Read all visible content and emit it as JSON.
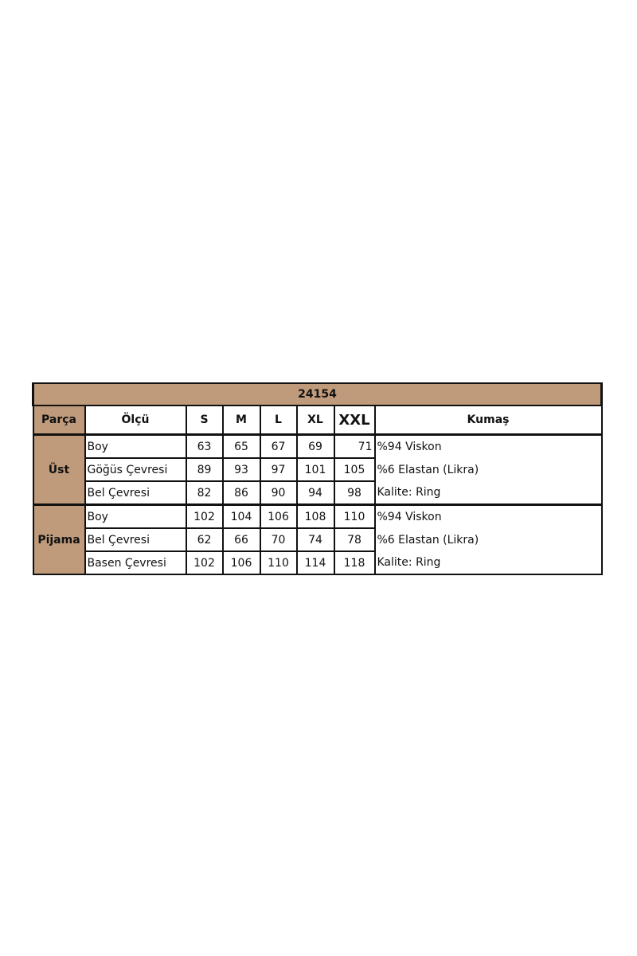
{
  "title": "24154",
  "headers": [
    "Parça",
    "Ölçü",
    "S",
    "M",
    "L",
    "XL",
    "XXL",
    "Kumaş"
  ],
  "groups": [
    {
      "name": "Üst",
      "rows": [
        {
          "label": "Boy",
          "values": [
            "63",
            "65",
            "67",
            "69",
            "71"
          ],
          "fabric": "%94 Viskon"
        },
        {
          "label": "Göğüs Çevresi",
          "values": [
            "89",
            "93",
            "97",
            "101",
            "105"
          ],
          "fabric": "%6 Elastan (Likra)"
        },
        {
          "label": "Bel Çevresi",
          "values": [
            "82",
            "86",
            "90",
            "94",
            "98"
          ],
          "fabric": "Kalite: Ring"
        }
      ]
    },
    {
      "name": "Pijama",
      "rows": [
        {
          "label": "Boy",
          "values": [
            "102",
            "104",
            "106",
            "108",
            "110"
          ],
          "fabric": "%94 Viskon"
        },
        {
          "label": "Bel Çevresi",
          "values": [
            "62",
            "66",
            "70",
            "74",
            "78"
          ],
          "fabric": "%6 Elastan (Likra)"
        },
        {
          "label": "Basen Çevresi",
          "values": [
            "102",
            "106",
            "110",
            "114",
            "118"
          ],
          "fabric": "Kalite: Ring"
        }
      ]
    }
  ],
  "colors": {
    "header_fill": "#bf9b7b",
    "border": "#111111"
  }
}
